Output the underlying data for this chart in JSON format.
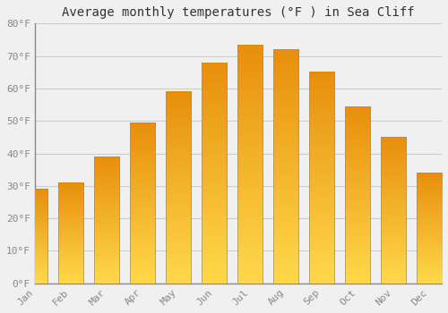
{
  "title": "Average monthly temperatures (°F ) in Sea Cliff",
  "months": [
    "Jan",
    "Feb",
    "Mar",
    "Apr",
    "May",
    "Jun",
    "Jul",
    "Aug",
    "Sep",
    "Oct",
    "Nov",
    "Dec"
  ],
  "values": [
    29,
    31,
    39,
    49.5,
    59,
    68,
    73.5,
    72,
    65,
    54.5,
    45,
    34
  ],
  "bar_color_bottom": "#FFD060",
  "bar_color_top": "#E8900A",
  "bar_edge_color": "#D4890A",
  "background_color": "#F0F0F0",
  "grid_color": "#CCCCCC",
  "ylim": [
    0,
    80
  ],
  "yticks": [
    0,
    10,
    20,
    30,
    40,
    50,
    60,
    70,
    80
  ],
  "ytick_labels": [
    "0°F",
    "10°F",
    "20°F",
    "30°F",
    "40°F",
    "50°F",
    "60°F",
    "70°F",
    "80°F"
  ],
  "title_fontsize": 10,
  "tick_fontsize": 8,
  "font_family": "monospace",
  "tick_color": "#888888"
}
